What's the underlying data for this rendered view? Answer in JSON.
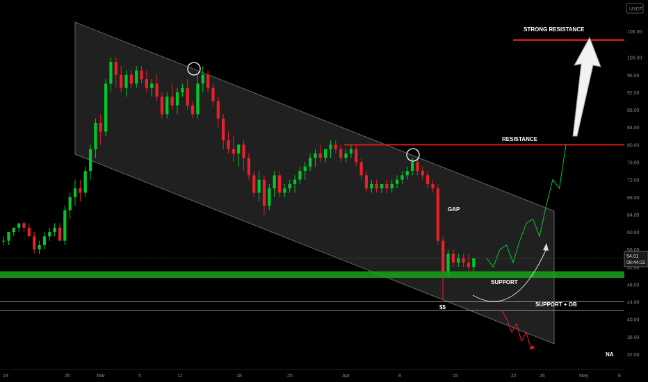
{
  "symbol_currency": "USDT",
  "last_price": {
    "value": "54.01",
    "countdown": "08:44:32"
  },
  "colors": {
    "background": "#000000",
    "up": "#00c82a",
    "down": "#e8212a",
    "channel": "#3a3a3a",
    "support_zone": "#16a31c",
    "resistance": "#e01a1a",
    "white": "#ffffff"
  },
  "annotations": {
    "strong_resistance": "STRONG RESISTANCE",
    "resistance": "RESISTANCE",
    "gap": "GAP",
    "support": "SUPPORT",
    "support_ob": "SUPPORT + OB",
    "ss": "$$",
    "na": "NA"
  },
  "chart_data": {
    "type": "candlestick",
    "title": "",
    "xlabel": "",
    "ylabel": "",
    "ylim": [
      30,
      110
    ],
    "y_ticks": [
      "106.00",
      "100.00",
      "96.00",
      "92.00",
      "88.00",
      "84.00",
      "80.00",
      "76.00",
      "72.00",
      "68.00",
      "64.00",
      "60.00",
      "56.00",
      "52.00",
      "48.00",
      "44.00",
      "40.00",
      "36.00",
      "32.00"
    ],
    "x_ticks": [
      "19",
      "26",
      "Mar",
      "5",
      "11",
      "18",
      "25",
      "Apr",
      "8",
      "15",
      "22",
      "26",
      "May",
      "6"
    ],
    "candles": [
      [
        58,
        59,
        57,
        58
      ],
      [
        58,
        60,
        57,
        60
      ],
      [
        60,
        61,
        59,
        61
      ],
      [
        61,
        62,
        60,
        62
      ],
      [
        62,
        62.5,
        60,
        61
      ],
      [
        61,
        62,
        59,
        59
      ],
      [
        59,
        60,
        55,
        56
      ],
      [
        56,
        58,
        55,
        57
      ],
      [
        57,
        60,
        56,
        59
      ],
      [
        59,
        61,
        58,
        60
      ],
      [
        60,
        62,
        59,
        61
      ],
      [
        61,
        62,
        58,
        58
      ],
      [
        58,
        66,
        57,
        65
      ],
      [
        65,
        69,
        63,
        68
      ],
      [
        68,
        72,
        66,
        70
      ],
      [
        70,
        72,
        67,
        69
      ],
      [
        69,
        75,
        68,
        74
      ],
      [
        74,
        80,
        72,
        79
      ],
      [
        79,
        86,
        77,
        85
      ],
      [
        85,
        87,
        80,
        83
      ],
      [
        83,
        95,
        82,
        94
      ],
      [
        94,
        100,
        92,
        99
      ],
      [
        99,
        100,
        93,
        96
      ],
      [
        96,
        98,
        92,
        93
      ],
      [
        93,
        97,
        91,
        96
      ],
      [
        96,
        97,
        93,
        94
      ],
      [
        94,
        98,
        93,
        97
      ],
      [
        97,
        98,
        94,
        95
      ],
      [
        95,
        97,
        92,
        93
      ],
      [
        93,
        95,
        91,
        94
      ],
      [
        94,
        96,
        90,
        91
      ],
      [
        91,
        92,
        86,
        87
      ],
      [
        87,
        92,
        86,
        91
      ],
      [
        91,
        94,
        88,
        89
      ],
      [
        89,
        93,
        87,
        92
      ],
      [
        92,
        94,
        91,
        93
      ],
      [
        93,
        95,
        88,
        89
      ],
      [
        89,
        90,
        86,
        87
      ],
      [
        87,
        96,
        86,
        94
      ],
      [
        94,
        98,
        92,
        96
      ],
      [
        96,
        97,
        92,
        93
      ],
      [
        93,
        94,
        89,
        90
      ],
      [
        90,
        91,
        84,
        86
      ],
      [
        86,
        87,
        79,
        81
      ],
      [
        81,
        83,
        78,
        79
      ],
      [
        79,
        82,
        76,
        78
      ],
      [
        78,
        80,
        75,
        80
      ],
      [
        80,
        81,
        74,
        77
      ],
      [
        77,
        78,
        72,
        73
      ],
      [
        73,
        74,
        68,
        69
      ],
      [
        69,
        74,
        67,
        72
      ],
      [
        72,
        73,
        64,
        66
      ],
      [
        66,
        71,
        65,
        70
      ],
      [
        70,
        74,
        68,
        73
      ],
      [
        73,
        74,
        68,
        69
      ],
      [
        69,
        71,
        68,
        70
      ],
      [
        70,
        72,
        69,
        71
      ],
      [
        71,
        73,
        69,
        72
      ],
      [
        72,
        75,
        71,
        74
      ],
      [
        74,
        76,
        72,
        75
      ],
      [
        75,
        78,
        74,
        77
      ],
      [
        77,
        79,
        75,
        78
      ],
      [
        78,
        80,
        76,
        77
      ],
      [
        77,
        79,
        76,
        79
      ],
      [
        79,
        81,
        77,
        80
      ],
      [
        80,
        81,
        78,
        79
      ],
      [
        79,
        80,
        76,
        77
      ],
      [
        77,
        79,
        76,
        78
      ],
      [
        78,
        80,
        77,
        79
      ],
      [
        79,
        80,
        75,
        76
      ],
      [
        76,
        77,
        72,
        73
      ],
      [
        73,
        74,
        69,
        70
      ],
      [
        70,
        72,
        69,
        71
      ],
      [
        71,
        72,
        69,
        70
      ],
      [
        70,
        71,
        69,
        71
      ],
      [
        71,
        72,
        69,
        70
      ],
      [
        70,
        72,
        69,
        71
      ],
      [
        71,
        73,
        70,
        72
      ],
      [
        72,
        74,
        71,
        73
      ],
      [
        73,
        75,
        72,
        74
      ],
      [
        74,
        77,
        73,
        76
      ],
      [
        76,
        77,
        73,
        74
      ],
      [
        74,
        75,
        72,
        73
      ],
      [
        73,
        74,
        70,
        71
      ],
      [
        71,
        72,
        69,
        70
      ],
      [
        70,
        71,
        57,
        58
      ],
      [
        58,
        59,
        51,
        51
      ],
      [
        51,
        56,
        50,
        55
      ],
      [
        55,
        56,
        52,
        53
      ],
      [
        53,
        55,
        52,
        54
      ],
      [
        54,
        55,
        52,
        53
      ],
      [
        53,
        55,
        51,
        52
      ],
      [
        52,
        54,
        51,
        54
      ]
    ],
    "channel": {
      "upper": [
        [
          60,
          108
        ],
        [
          200,
          64
        ]
      ],
      "lower": [
        [
          60,
          74
        ],
        [
          200,
          35
        ]
      ]
    },
    "resistance_level": 80,
    "strong_resistance_level": 104,
    "support_zone": [
      49.5,
      51
    ],
    "support_lines": [
      44,
      42
    ],
    "projection_path": [
      54,
      52,
      56,
      57,
      53,
      58,
      62,
      63,
      59,
      66,
      72,
      70,
      80
    ],
    "bearish_path": [
      42,
      40,
      37,
      39,
      35,
      37,
      33
    ]
  }
}
